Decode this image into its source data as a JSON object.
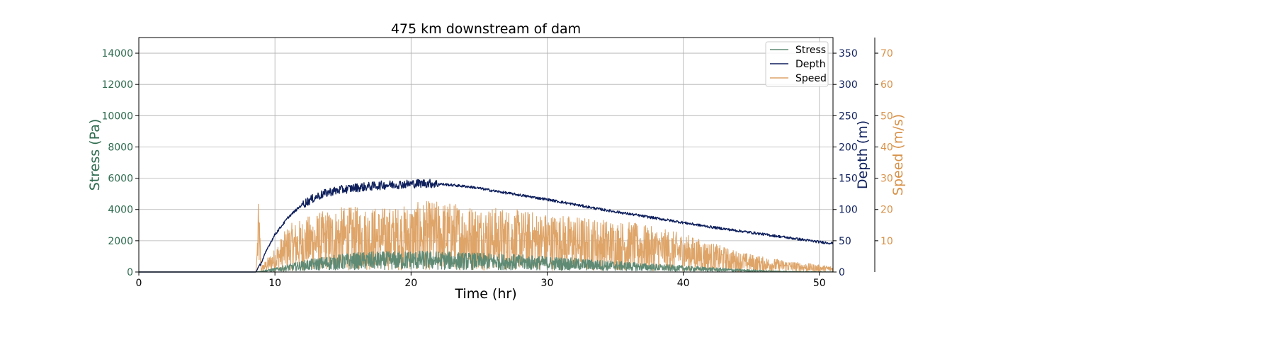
{
  "chart_data": {
    "type": "line",
    "title": "475 km downstream of dam",
    "xlabel": "Time (hr)",
    "xlim": [
      0,
      51
    ],
    "xticks": [
      0,
      10,
      20,
      30,
      40,
      50
    ],
    "grid": true,
    "legend": {
      "placement": "top-right",
      "entries": [
        "Stress",
        "Depth",
        "Speed"
      ]
    },
    "axes": {
      "stress": {
        "label": "Stress (Pa)",
        "ylim": [
          0,
          15000
        ],
        "ticks": [
          0,
          2000,
          4000,
          6000,
          8000,
          10000,
          12000,
          14000
        ],
        "color": "#2e6b4f"
      },
      "depth": {
        "label": "Depth (m)",
        "ylim": [
          0,
          375
        ],
        "ticks": [
          0,
          50,
          100,
          150,
          200,
          250,
          300,
          350
        ],
        "color": "#0e1f5c"
      },
      "speed": {
        "label": "Speed (m/s)",
        "ylim": [
          0,
          75
        ],
        "ticks": [
          10,
          20,
          30,
          40,
          50,
          60,
          70
        ],
        "color": "#d8924a"
      }
    },
    "series": [
      {
        "name": "Stress",
        "axis": "stress",
        "color": "#5f8a74",
        "x": [
          0,
          8.6,
          9.0,
          10,
          11,
          12,
          13,
          14,
          15,
          16,
          17,
          18,
          19,
          20,
          21,
          22,
          23,
          24,
          25,
          26,
          28,
          30,
          32,
          34,
          36,
          38,
          40,
          42,
          44,
          46,
          48,
          50,
          51
        ],
        "y": [
          0,
          0,
          50,
          150,
          280,
          400,
          500,
          580,
          650,
          700,
          720,
          730,
          740,
          760,
          760,
          740,
          720,
          700,
          680,
          660,
          620,
          560,
          500,
          430,
          360,
          290,
          230,
          170,
          110,
          60,
          25,
          10,
          5
        ]
      },
      {
        "name": "Depth",
        "axis": "depth",
        "color": "#0e1f5c",
        "x": [
          0,
          8.6,
          9.0,
          9.5,
          10,
          11,
          12,
          13,
          14,
          15,
          16,
          17,
          18,
          19,
          20,
          21,
          22,
          23,
          24,
          25,
          26,
          28,
          30,
          32,
          34,
          36,
          38,
          40,
          42,
          44,
          46,
          48,
          50,
          51
        ],
        "y": [
          0,
          0,
          15,
          40,
          60,
          88,
          108,
          120,
          128,
          132,
          135,
          137,
          139,
          140,
          141,
          142,
          141,
          139,
          137,
          134,
          130,
          123,
          116,
          108,
          100,
          93,
          86,
          79,
          72,
          66,
          60,
          54,
          48,
          46
        ]
      },
      {
        "name": "Speed",
        "axis": "speed",
        "color": "#dea468",
        "x": [
          0,
          8.6,
          8.8,
          9.0,
          10,
          11,
          12,
          13,
          14,
          15,
          16,
          17,
          18,
          19,
          20,
          21,
          22,
          23,
          24,
          25,
          26,
          28,
          30,
          32,
          34,
          36,
          38,
          40,
          42,
          44,
          46,
          48,
          50,
          51
        ],
        "y": [
          0,
          0,
          13,
          1,
          4,
          8,
          9,
          10,
          10.5,
          11,
          11,
          11,
          11,
          11,
          11.5,
          12,
          12,
          11.8,
          11.5,
          11.2,
          11,
          10.5,
          10,
          9.5,
          9,
          8.5,
          7.5,
          6.5,
          5,
          3.5,
          2.5,
          1.8,
          1.2,
          1
        ]
      }
    ]
  }
}
